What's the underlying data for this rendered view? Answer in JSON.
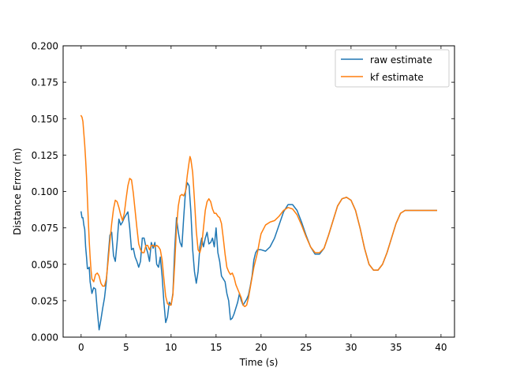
{
  "chart_data": {
    "type": "line",
    "title": "",
    "xlabel": "Time (s)",
    "ylabel": "Distance Error (m)",
    "xlim": [
      -2,
      41.5
    ],
    "ylim": [
      0,
      0.2
    ],
    "x_ticks": [
      0,
      5,
      10,
      15,
      20,
      25,
      30,
      35,
      40
    ],
    "x_tick_labels": [
      "0",
      "5",
      "10",
      "15",
      "20",
      "25",
      "30",
      "35",
      "40"
    ],
    "y_ticks": [
      0,
      0.025,
      0.05,
      0.075,
      0.1,
      0.125,
      0.15,
      0.175,
      0.2
    ],
    "y_tick_labels": [
      "0.000",
      "0.025",
      "0.050",
      "0.075",
      "0.100",
      "0.125",
      "0.150",
      "0.175",
      "0.200"
    ],
    "grid": false,
    "legend_position": "top-right",
    "series": [
      {
        "name": "raw estimate",
        "color": "#1f77b4",
        "points": [
          [
            0.0,
            0.086
          ],
          [
            0.1,
            0.082
          ],
          [
            0.2,
            0.082
          ],
          [
            0.3,
            0.077
          ],
          [
            0.4,
            0.074
          ],
          [
            0.5,
            0.062
          ],
          [
            0.6,
            0.055
          ],
          [
            0.7,
            0.047
          ],
          [
            0.8,
            0.047
          ],
          [
            0.9,
            0.048
          ],
          [
            1.0,
            0.038
          ],
          [
            1.2,
            0.03
          ],
          [
            1.4,
            0.034
          ],
          [
            1.6,
            0.033
          ],
          [
            1.8,
            0.018
          ],
          [
            2.0,
            0.005
          ],
          [
            2.2,
            0.012
          ],
          [
            2.4,
            0.02
          ],
          [
            2.6,
            0.027
          ],
          [
            2.8,
            0.038
          ],
          [
            3.0,
            0.055
          ],
          [
            3.2,
            0.07
          ],
          [
            3.4,
            0.072
          ],
          [
            3.6,
            0.056
          ],
          [
            3.8,
            0.052
          ],
          [
            4.0,
            0.065
          ],
          [
            4.2,
            0.081
          ],
          [
            4.4,
            0.077
          ],
          [
            4.6,
            0.079
          ],
          [
            4.8,
            0.082
          ],
          [
            5.0,
            0.084
          ],
          [
            5.2,
            0.086
          ],
          [
            5.4,
            0.075
          ],
          [
            5.6,
            0.06
          ],
          [
            5.8,
            0.061
          ],
          [
            6.0,
            0.055
          ],
          [
            6.2,
            0.052
          ],
          [
            6.4,
            0.048
          ],
          [
            6.6,
            0.052
          ],
          [
            6.8,
            0.068
          ],
          [
            7.0,
            0.068
          ],
          [
            7.2,
            0.062
          ],
          [
            7.4,
            0.058
          ],
          [
            7.6,
            0.052
          ],
          [
            7.8,
            0.065
          ],
          [
            8.0,
            0.061
          ],
          [
            8.2,
            0.065
          ],
          [
            8.4,
            0.05
          ],
          [
            8.6,
            0.048
          ],
          [
            8.8,
            0.055
          ],
          [
            9.0,
            0.042
          ],
          [
            9.2,
            0.024
          ],
          [
            9.4,
            0.01
          ],
          [
            9.6,
            0.014
          ],
          [
            9.8,
            0.024
          ],
          [
            10.0,
            0.022
          ],
          [
            10.2,
            0.03
          ],
          [
            10.4,
            0.06
          ],
          [
            10.6,
            0.082
          ],
          [
            10.8,
            0.072
          ],
          [
            11.0,
            0.065
          ],
          [
            11.2,
            0.062
          ],
          [
            11.4,
            0.082
          ],
          [
            11.6,
            0.1
          ],
          [
            11.8,
            0.106
          ],
          [
            12.0,
            0.104
          ],
          [
            12.2,
            0.086
          ],
          [
            12.4,
            0.06
          ],
          [
            12.6,
            0.045
          ],
          [
            12.8,
            0.037
          ],
          [
            13.0,
            0.045
          ],
          [
            13.2,
            0.062
          ],
          [
            13.4,
            0.068
          ],
          [
            13.6,
            0.062
          ],
          [
            13.8,
            0.068
          ],
          [
            14.0,
            0.072
          ],
          [
            14.2,
            0.064
          ],
          [
            14.4,
            0.065
          ],
          [
            14.6,
            0.068
          ],
          [
            14.8,
            0.062
          ],
          [
            15.0,
            0.075
          ],
          [
            15.2,
            0.058
          ],
          [
            15.4,
            0.052
          ],
          [
            15.6,
            0.042
          ],
          [
            15.8,
            0.04
          ],
          [
            16.0,
            0.038
          ],
          [
            16.2,
            0.03
          ],
          [
            16.4,
            0.025
          ],
          [
            16.6,
            0.012
          ],
          [
            16.8,
            0.013
          ],
          [
            17.0,
            0.016
          ],
          [
            17.2,
            0.02
          ],
          [
            17.4,
            0.024
          ],
          [
            17.6,
            0.03
          ],
          [
            17.8,
            0.025
          ],
          [
            18.0,
            0.022
          ],
          [
            18.2,
            0.024
          ],
          [
            18.4,
            0.026
          ],
          [
            18.6,
            0.029
          ],
          [
            18.8,
            0.035
          ],
          [
            19.0,
            0.042
          ],
          [
            19.2,
            0.053
          ],
          [
            19.4,
            0.058
          ],
          [
            19.6,
            0.06
          ],
          [
            19.8,
            0.06
          ],
          [
            20.0,
            0.06
          ],
          [
            20.5,
            0.059
          ],
          [
            21.0,
            0.062
          ],
          [
            21.5,
            0.068
          ],
          [
            22.0,
            0.077
          ],
          [
            22.5,
            0.086
          ],
          [
            23.0,
            0.091
          ],
          [
            23.5,
            0.091
          ],
          [
            24.0,
            0.087
          ],
          [
            24.5,
            0.079
          ],
          [
            25.0,
            0.07
          ],
          [
            25.5,
            0.062
          ],
          [
            26.0,
            0.057
          ],
          [
            26.5,
            0.057
          ],
          [
            27.0,
            0.061
          ],
          [
            27.5,
            0.07
          ],
          [
            28.0,
            0.08
          ],
          [
            28.5,
            0.09
          ],
          [
            29.0,
            0.095
          ],
          [
            29.5,
            0.096
          ],
          [
            30.0,
            0.094
          ],
          [
            30.5,
            0.087
          ],
          [
            31.0,
            0.075
          ],
          [
            31.5,
            0.061
          ],
          [
            32.0,
            0.05
          ],
          [
            32.5,
            0.046
          ],
          [
            33.0,
            0.046
          ],
          [
            33.5,
            0.05
          ],
          [
            34.0,
            0.058
          ],
          [
            34.5,
            0.068
          ],
          [
            35.0,
            0.078
          ],
          [
            35.5,
            0.085
          ],
          [
            36.0,
            0.087
          ],
          [
            37.0,
            0.087
          ],
          [
            38.0,
            0.087
          ],
          [
            39.0,
            0.087
          ],
          [
            39.5,
            0.087
          ]
        ]
      },
      {
        "name": "kf estimate",
        "color": "#ff7f0e",
        "points": [
          [
            0.0,
            0.152
          ],
          [
            0.1,
            0.151
          ],
          [
            0.2,
            0.148
          ],
          [
            0.3,
            0.14
          ],
          [
            0.4,
            0.132
          ],
          [
            0.5,
            0.122
          ],
          [
            0.6,
            0.11
          ],
          [
            0.7,
            0.095
          ],
          [
            0.8,
            0.08
          ],
          [
            0.9,
            0.066
          ],
          [
            1.0,
            0.055
          ],
          [
            1.1,
            0.046
          ],
          [
            1.2,
            0.04
          ],
          [
            1.4,
            0.038
          ],
          [
            1.6,
            0.043
          ],
          [
            1.8,
            0.044
          ],
          [
            2.0,
            0.042
          ],
          [
            2.2,
            0.037
          ],
          [
            2.4,
            0.035
          ],
          [
            2.6,
            0.035
          ],
          [
            2.8,
            0.04
          ],
          [
            3.0,
            0.052
          ],
          [
            3.2,
            0.066
          ],
          [
            3.4,
            0.078
          ],
          [
            3.6,
            0.088
          ],
          [
            3.8,
            0.094
          ],
          [
            4.0,
            0.093
          ],
          [
            4.2,
            0.089
          ],
          [
            4.4,
            0.084
          ],
          [
            4.6,
            0.08
          ],
          [
            4.8,
            0.085
          ],
          [
            5.0,
            0.095
          ],
          [
            5.2,
            0.104
          ],
          [
            5.4,
            0.109
          ],
          [
            5.6,
            0.108
          ],
          [
            5.8,
            0.099
          ],
          [
            6.0,
            0.087
          ],
          [
            6.2,
            0.075
          ],
          [
            6.4,
            0.064
          ],
          [
            6.6,
            0.06
          ],
          [
            6.8,
            0.058
          ],
          [
            7.0,
            0.058
          ],
          [
            7.2,
            0.063
          ],
          [
            7.4,
            0.063
          ],
          [
            7.6,
            0.06
          ],
          [
            7.8,
            0.063
          ],
          [
            8.0,
            0.063
          ],
          [
            8.2,
            0.062
          ],
          [
            8.4,
            0.063
          ],
          [
            8.6,
            0.062
          ],
          [
            8.8,
            0.06
          ],
          [
            9.0,
            0.053
          ],
          [
            9.2,
            0.04
          ],
          [
            9.4,
            0.028
          ],
          [
            9.6,
            0.023
          ],
          [
            9.8,
            0.022
          ],
          [
            10.0,
            0.022
          ],
          [
            10.2,
            0.029
          ],
          [
            10.4,
            0.05
          ],
          [
            10.6,
            0.075
          ],
          [
            10.8,
            0.09
          ],
          [
            11.0,
            0.097
          ],
          [
            11.2,
            0.098
          ],
          [
            11.4,
            0.097
          ],
          [
            11.6,
            0.1
          ],
          [
            11.8,
            0.111
          ],
          [
            12.0,
            0.12
          ],
          [
            12.1,
            0.124
          ],
          [
            12.2,
            0.122
          ],
          [
            12.4,
            0.113
          ],
          [
            12.6,
            0.094
          ],
          [
            12.8,
            0.073
          ],
          [
            13.0,
            0.06
          ],
          [
            13.2,
            0.058
          ],
          [
            13.4,
            0.063
          ],
          [
            13.6,
            0.075
          ],
          [
            13.8,
            0.087
          ],
          [
            14.0,
            0.093
          ],
          [
            14.2,
            0.095
          ],
          [
            14.4,
            0.093
          ],
          [
            14.6,
            0.088
          ],
          [
            14.8,
            0.085
          ],
          [
            15.0,
            0.085
          ],
          [
            15.2,
            0.083
          ],
          [
            15.4,
            0.082
          ],
          [
            15.6,
            0.078
          ],
          [
            15.8,
            0.068
          ],
          [
            16.0,
            0.057
          ],
          [
            16.2,
            0.048
          ],
          [
            16.4,
            0.045
          ],
          [
            16.6,
            0.043
          ],
          [
            16.8,
            0.044
          ],
          [
            17.0,
            0.041
          ],
          [
            17.2,
            0.036
          ],
          [
            17.4,
            0.033
          ],
          [
            17.6,
            0.03
          ],
          [
            17.8,
            0.027
          ],
          [
            18.0,
            0.022
          ],
          [
            18.2,
            0.021
          ],
          [
            18.4,
            0.022
          ],
          [
            18.6,
            0.027
          ],
          [
            18.8,
            0.034
          ],
          [
            19.0,
            0.041
          ],
          [
            19.2,
            0.048
          ],
          [
            19.4,
            0.053
          ],
          [
            19.6,
            0.058
          ],
          [
            19.8,
            0.065
          ],
          [
            20.0,
            0.071
          ],
          [
            20.5,
            0.077
          ],
          [
            21.0,
            0.079
          ],
          [
            21.5,
            0.08
          ],
          [
            22.0,
            0.083
          ],
          [
            22.5,
            0.087
          ],
          [
            23.0,
            0.089
          ],
          [
            23.5,
            0.088
          ],
          [
            24.0,
            0.084
          ],
          [
            24.5,
            0.077
          ],
          [
            25.0,
            0.069
          ],
          [
            25.5,
            0.062
          ],
          [
            26.0,
            0.058
          ],
          [
            26.5,
            0.058
          ],
          [
            27.0,
            0.061
          ],
          [
            27.5,
            0.07
          ],
          [
            28.0,
            0.08
          ],
          [
            28.5,
            0.09
          ],
          [
            29.0,
            0.095
          ],
          [
            29.5,
            0.096
          ],
          [
            30.0,
            0.094
          ],
          [
            30.5,
            0.087
          ],
          [
            31.0,
            0.075
          ],
          [
            31.5,
            0.061
          ],
          [
            32.0,
            0.05
          ],
          [
            32.5,
            0.046
          ],
          [
            33.0,
            0.046
          ],
          [
            33.5,
            0.05
          ],
          [
            34.0,
            0.058
          ],
          [
            34.5,
            0.068
          ],
          [
            35.0,
            0.078
          ],
          [
            35.5,
            0.085
          ],
          [
            36.0,
            0.087
          ],
          [
            37.0,
            0.087
          ],
          [
            38.0,
            0.087
          ],
          [
            39.0,
            0.087
          ],
          [
            39.5,
            0.087
          ]
        ]
      }
    ]
  }
}
